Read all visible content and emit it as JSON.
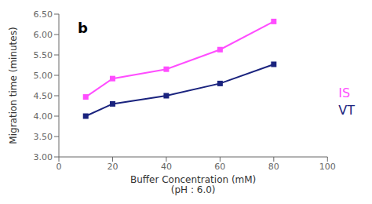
{
  "chart_data": {
    "type": "line",
    "title": "b",
    "xlabel": "Buffer Concentration (mM)\n(pH : 6.0)",
    "ylabel": "Migration time (minutes)",
    "x": [
      10,
      20,
      40,
      60,
      80
    ],
    "series": [
      {
        "name": "IS",
        "color": "#FF4DFF",
        "marker": "square",
        "values": [
          4.47,
          4.92,
          5.15,
          5.63,
          6.32
        ]
      },
      {
        "name": "VT",
        "color": "#1A237E",
        "marker": "square",
        "values": [
          4.0,
          4.3,
          4.5,
          4.8,
          5.27
        ]
      }
    ],
    "xlim": [
      0,
      100
    ],
    "xticks": [
      0,
      20,
      40,
      60,
      80,
      100
    ],
    "ylim": [
      3.0,
      6.5
    ],
    "yticks": [
      {
        "value": 3.0,
        "label": "3.00"
      },
      {
        "value": 3.5,
        "label": "3.50"
      },
      {
        "value": 4.0,
        "label": "4.00"
      },
      {
        "value": 4.5,
        "label": "4.50"
      },
      {
        "value": 5.0,
        "label": "5.00"
      },
      {
        "value": 5.5,
        "label": "5.50"
      },
      {
        "value": 6.0,
        "label": "6.00"
      },
      {
        "value": 6.5,
        "label": "6.50"
      }
    ],
    "grid": false,
    "legend": "right"
  }
}
